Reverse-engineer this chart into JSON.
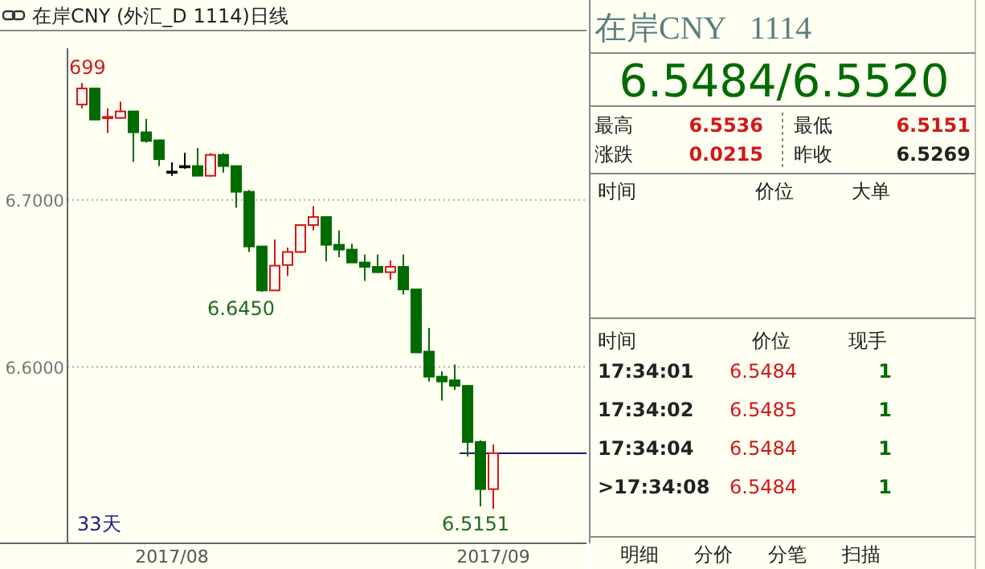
{
  "chart_data": [
    {
      "type": "candlestick",
      "title": "在岸CNY (外汇_D 1114)日线",
      "categories": [
        null,
        null,
        null,
        null,
        null,
        null,
        null,
        "2017/08",
        null,
        null,
        null,
        null,
        null,
        null,
        null,
        null,
        null,
        null,
        null,
        null,
        null,
        null,
        null,
        null,
        null,
        null,
        null,
        null,
        null,
        null,
        null,
        null,
        "2017/09"
      ],
      "ohlc": [
        [
          6.757,
          6.7699,
          6.7548,
          6.7666
        ],
        [
          6.7666,
          6.7666,
          6.748,
          6.748
        ],
        [
          6.749,
          6.7548,
          6.74,
          6.7496
        ],
        [
          6.749,
          6.7587,
          6.749,
          6.7529
        ],
        [
          6.7529,
          6.7529,
          6.7227,
          6.7404
        ],
        [
          6.7404,
          6.7484,
          6.7342,
          6.7352
        ],
        [
          6.7356,
          6.7356,
          6.7202,
          6.7243
        ],
        [
          6.7169,
          6.7224,
          6.7144,
          6.7169
        ],
        [
          6.7202,
          6.7282,
          6.7185,
          6.7202
        ],
        [
          6.7202,
          6.7311,
          6.7144,
          6.7144
        ],
        [
          6.7144,
          6.7279,
          6.7138,
          6.7269
        ],
        [
          6.7269,
          6.7279,
          6.7163,
          6.7202
        ],
        [
          6.7202,
          6.7202,
          6.6952,
          6.7048
        ],
        [
          6.7048,
          6.7058,
          6.6688,
          6.6721
        ],
        [
          6.6721,
          6.6721,
          6.645,
          6.6458
        ],
        [
          6.6458,
          6.6762,
          6.6458,
          6.6606
        ],
        [
          6.661,
          6.6714,
          6.6544,
          6.6688
        ],
        [
          6.6688,
          6.6849,
          6.6682,
          6.6849
        ],
        [
          6.6849,
          6.6962,
          6.6817,
          6.6897
        ],
        [
          6.6897,
          6.6897,
          6.6631,
          6.6731
        ],
        [
          6.6731,
          6.6817,
          6.6657,
          6.6702
        ],
        [
          6.6702,
          6.6737,
          6.6625,
          6.6625
        ],
        [
          6.6625,
          6.6673,
          6.6515,
          6.6599
        ],
        [
          6.6599,
          6.6673,
          6.6564,
          6.6567
        ],
        [
          6.6567,
          6.6638,
          6.6522,
          6.6599
        ],
        [
          6.6599,
          6.6673,
          6.6433,
          6.6464
        ],
        [
          6.6464,
          6.6464,
          6.6087,
          6.6087
        ],
        [
          6.6092,
          6.6234,
          6.5913,
          6.5942
        ],
        [
          6.5942,
          6.5974,
          6.5798,
          6.5913
        ],
        [
          6.592,
          6.6015,
          6.5862,
          6.5887
        ],
        [
          6.5887,
          6.5887,
          6.5464,
          6.5551
        ],
        [
          6.5551,
          6.556,
          6.5166,
          6.5269
        ],
        [
          6.5269,
          6.5536,
          6.5151,
          6.5484
        ]
      ],
      "ylim": [
        6.4945,
        6.7907
      ],
      "yticks": [
        {
          "value": 6.6,
          "label": "6.6000"
        },
        {
          "value": 6.7,
          "label": "6.7000"
        }
      ],
      "grid": "y",
      "ref_lines": [
        {
          "axis": "y",
          "value": 6.5484
        }
      ],
      "annotations": [
        "699",
        "6.6450",
        "6.5151",
        "33天"
      ]
    },
    {
      "type": "other",
      "title": "在岸CNY   1114",
      "annotations": [
        "6.5484/6.5520",
        "最高",
        "6.5536",
        "最低",
        "6.5151",
        "涨跌",
        "0.0215",
        "昨收",
        "6.5269",
        "时间",
        "价位",
        "大单",
        "时间",
        "价位",
        "现手",
        "17:34:01",
        "6.5484",
        "1",
        "17:34:02",
        "6.5485",
        "1",
        "17:34:04",
        "6.5484",
        "1",
        ">17:34:08",
        "6.5484",
        "1",
        "明细",
        "分价",
        "分笔",
        "扫描"
      ]
    }
  ]
}
